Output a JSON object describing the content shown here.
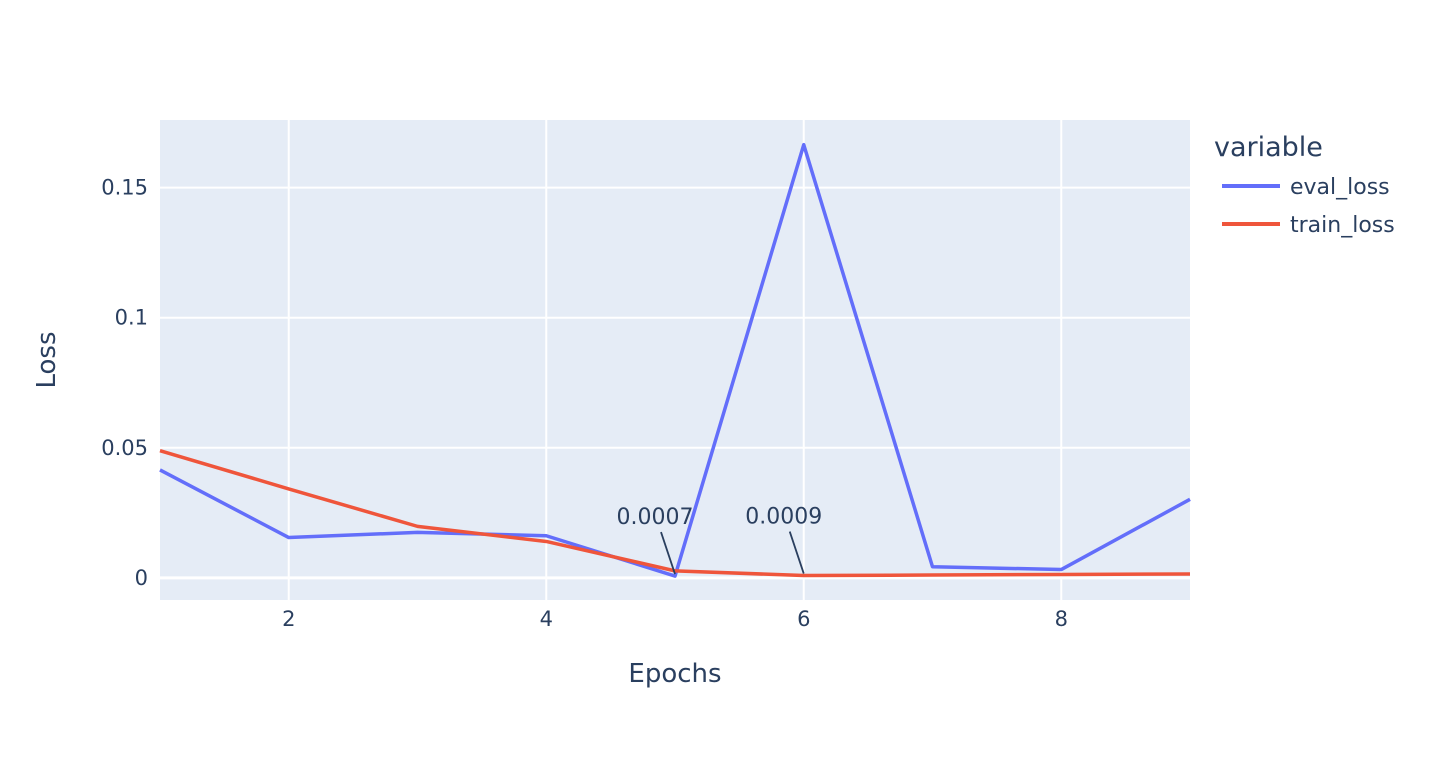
{
  "chart_data": {
    "type": "line",
    "xlabel": "Epochs",
    "ylabel": "Loss",
    "xlim": [
      1,
      9
    ],
    "ylim": [
      -0.0085,
      0.176
    ],
    "x_ticks": [
      2,
      4,
      6,
      8
    ],
    "x_tick_labels": [
      "2",
      "4",
      "6",
      "8"
    ],
    "y_ticks": [
      0,
      0.05,
      0.1,
      0.15
    ],
    "y_tick_labels": [
      "0",
      "0.05",
      "0.1",
      "0.15"
    ],
    "grid": true,
    "legend": {
      "title": "variable",
      "placement": "right"
    },
    "x": [
      1,
      2,
      3,
      4,
      5,
      6,
      7,
      8,
      9
    ],
    "series": [
      {
        "name": "eval_loss",
        "color": "#636efa",
        "values": [
          0.0415,
          0.0155,
          0.0175,
          0.0162,
          0.0007,
          0.1665,
          0.0043,
          0.0032,
          0.0302
        ]
      },
      {
        "name": "train_loss",
        "color": "#ef553b",
        "values": [
          0.0489,
          0.0342,
          0.0198,
          0.014,
          0.0027,
          0.0009,
          0.0011,
          0.0013,
          0.0015
        ]
      }
    ],
    "annotations": [
      {
        "text": "0.0007",
        "x": 5,
        "y": 0.0007
      },
      {
        "text": "0.0009",
        "x": 6,
        "y": 0.0009
      }
    ],
    "plot_background": "#e5ecf6",
    "text_color": "#2a3f5f"
  }
}
